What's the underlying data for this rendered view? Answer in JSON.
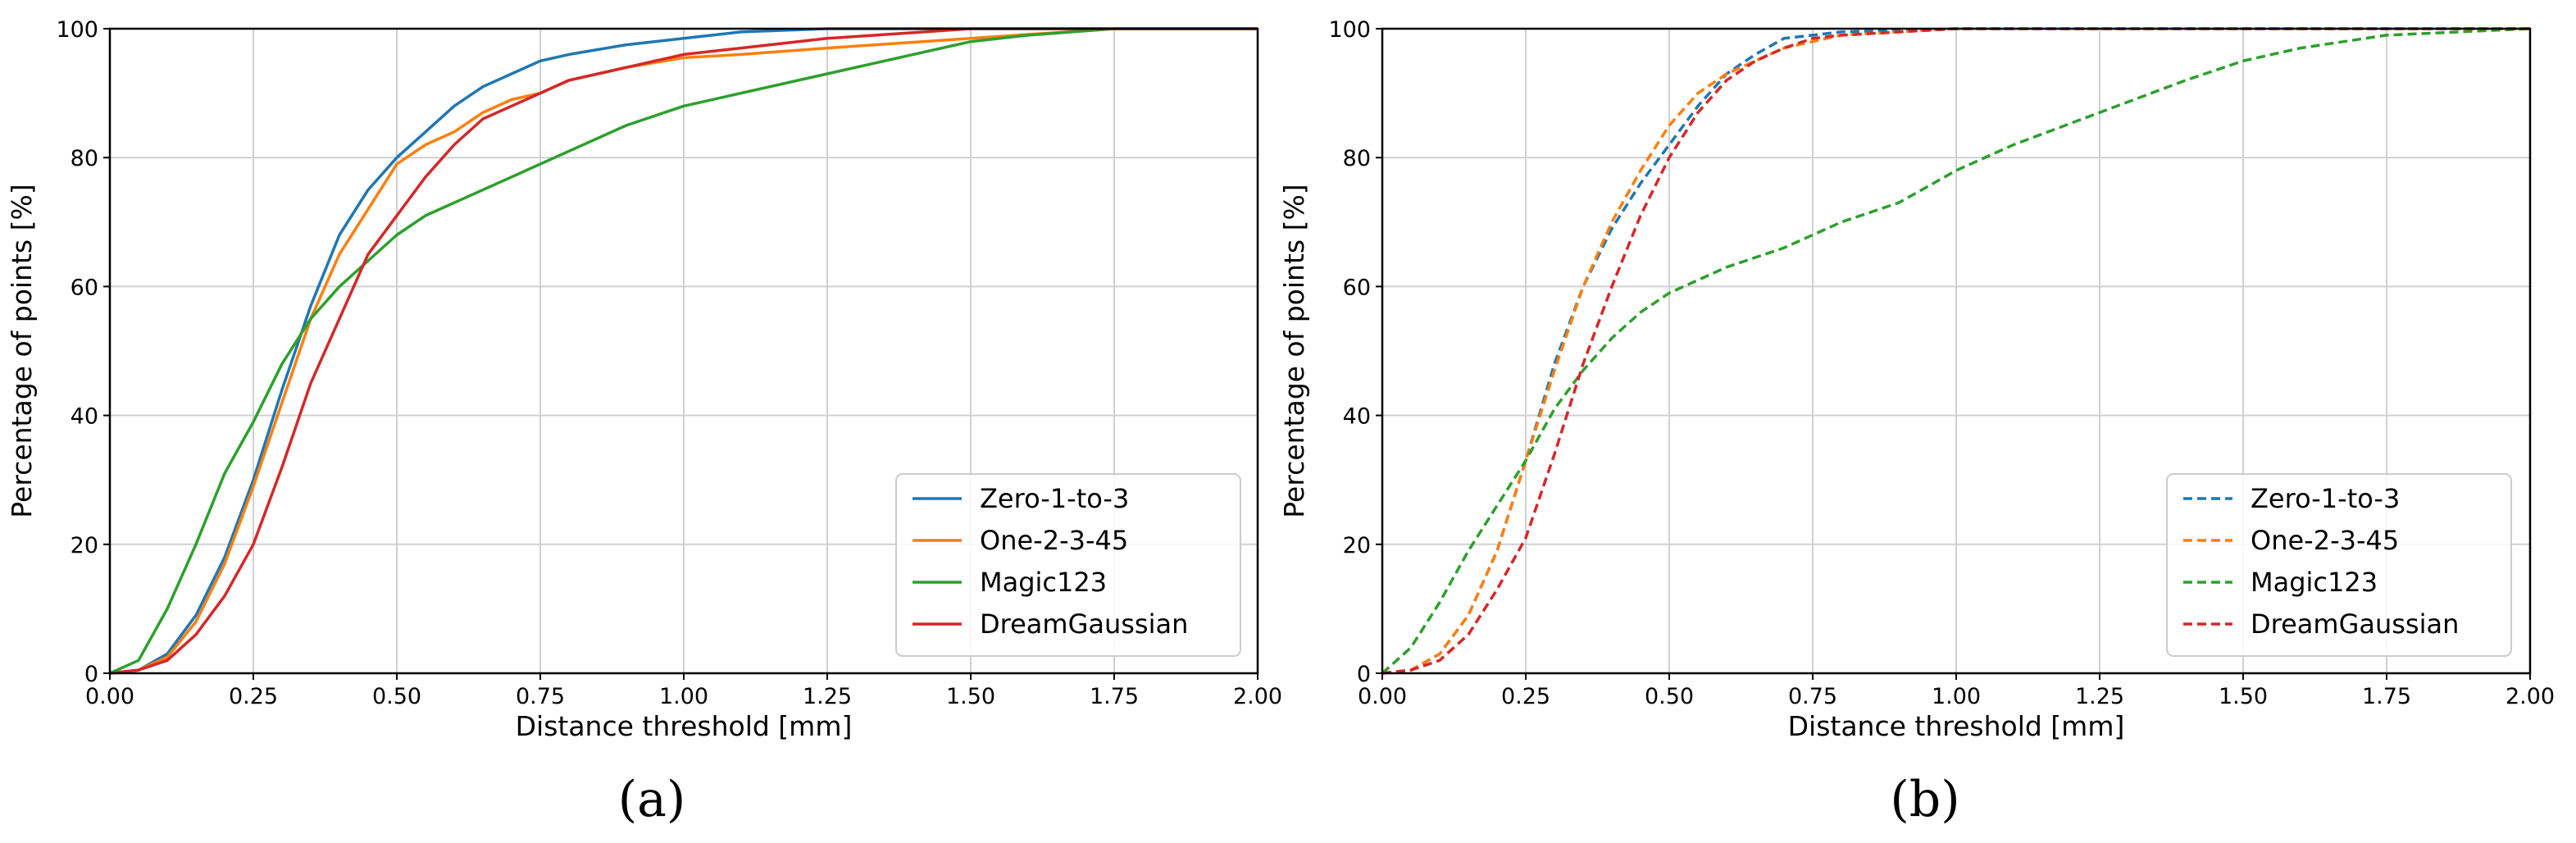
{
  "chart_data": [
    {
      "type": "line",
      "panel_label": "(a)",
      "xlabel": "Distance threshold [mm]",
      "ylabel": "Percentage of points [%]",
      "xlim": [
        0,
        2
      ],
      "ylim": [
        0,
        100
      ],
      "xticks": [
        "0.00",
        "0.25",
        "0.50",
        "0.75",
        "1.00",
        "1.25",
        "1.50",
        "1.75",
        "2.00"
      ],
      "yticks": [
        "0",
        "20",
        "40",
        "60",
        "80",
        "100"
      ],
      "grid": true,
      "legend_position": "lower-right",
      "line_style": "solid",
      "series": [
        {
          "name": "Zero-1-to-3",
          "color": "#1f77b4",
          "x": [
            0,
            0.05,
            0.1,
            0.15,
            0.2,
            0.25,
            0.3,
            0.35,
            0.4,
            0.45,
            0.5,
            0.55,
            0.6,
            0.65,
            0.7,
            0.75,
            0.8,
            0.9,
            1.0,
            1.1,
            1.25,
            1.5,
            2.0
          ],
          "y": [
            0,
            0.5,
            3,
            9,
            18,
            30,
            44,
            57,
            68,
            75,
            80,
            84,
            88,
            91,
            93,
            95,
            96,
            97.5,
            98.5,
            99.5,
            100,
            100,
            100
          ]
        },
        {
          "name": "One-2-3-45",
          "color": "#ff7f0e",
          "x": [
            0,
            0.05,
            0.1,
            0.15,
            0.2,
            0.25,
            0.3,
            0.35,
            0.4,
            0.45,
            0.5,
            0.55,
            0.6,
            0.65,
            0.7,
            0.75,
            0.8,
            0.9,
            1.0,
            1.1,
            1.25,
            1.5,
            1.75,
            2.0
          ],
          "y": [
            0,
            0.5,
            2.5,
            8,
            17,
            29,
            42,
            55,
            65,
            72,
            79,
            82,
            84,
            87,
            89,
            90,
            92,
            94,
            95.5,
            96,
            97,
            98.5,
            100,
            100
          ]
        },
        {
          "name": "Magic123",
          "color": "#2ca02c",
          "x": [
            0,
            0.05,
            0.1,
            0.15,
            0.2,
            0.25,
            0.3,
            0.35,
            0.4,
            0.45,
            0.5,
            0.55,
            0.6,
            0.7,
            0.8,
            0.9,
            1.0,
            1.1,
            1.25,
            1.4,
            1.5,
            1.6,
            1.75,
            2.0
          ],
          "y": [
            0,
            2,
            10,
            20,
            31,
            39,
            48,
            55,
            60,
            64,
            68,
            71,
            73,
            77,
            81,
            85,
            88,
            90,
            93,
            96,
            98,
            99,
            100,
            100
          ]
        },
        {
          "name": "DreamGaussian",
          "color": "#d62728",
          "x": [
            0,
            0.05,
            0.1,
            0.15,
            0.2,
            0.25,
            0.3,
            0.35,
            0.4,
            0.45,
            0.5,
            0.55,
            0.6,
            0.65,
            0.7,
            0.75,
            0.8,
            0.9,
            1.0,
            1.1,
            1.25,
            1.5,
            2.0
          ],
          "y": [
            0,
            0.5,
            2,
            6,
            12,
            20,
            32,
            45,
            55,
            65,
            71,
            77,
            82,
            86,
            88,
            90,
            92,
            94,
            96,
            97,
            98.5,
            100,
            100
          ]
        }
      ]
    },
    {
      "type": "line",
      "panel_label": "(b)",
      "xlabel": "Distance threshold [mm]",
      "ylabel": "Percentage of points [%]",
      "xlim": [
        0,
        2
      ],
      "ylim": [
        0,
        100
      ],
      "xticks": [
        "0.00",
        "0.25",
        "0.50",
        "0.75",
        "1.00",
        "1.25",
        "1.50",
        "1.75",
        "2.00"
      ],
      "yticks": [
        "0",
        "20",
        "40",
        "60",
        "80",
        "100"
      ],
      "grid": true,
      "legend_position": "lower-right",
      "line_style": "dashed",
      "series": [
        {
          "name": "Zero-1-to-3",
          "color": "#1f77b4",
          "x": [
            0,
            0.05,
            0.1,
            0.15,
            0.2,
            0.25,
            0.3,
            0.35,
            0.4,
            0.45,
            0.5,
            0.55,
            0.6,
            0.65,
            0.7,
            0.75,
            0.8,
            1.0,
            2.0
          ],
          "y": [
            0,
            0.5,
            3,
            9,
            19,
            33,
            48,
            60,
            69,
            76,
            82,
            88,
            93,
            96,
            98.5,
            99,
            99.5,
            100,
            100
          ]
        },
        {
          "name": "One-2-3-45",
          "color": "#ff7f0e",
          "x": [
            0,
            0.05,
            0.1,
            0.15,
            0.2,
            0.25,
            0.3,
            0.35,
            0.4,
            0.45,
            0.5,
            0.55,
            0.6,
            0.65,
            0.7,
            0.75,
            0.8,
            1.0,
            2.0
          ],
          "y": [
            0,
            0.5,
            3,
            9,
            19,
            33,
            47,
            60,
            70,
            78,
            85,
            90,
            93,
            95,
            97,
            98,
            99,
            100,
            100
          ]
        },
        {
          "name": "Magic123",
          "color": "#2ca02c",
          "x": [
            0,
            0.05,
            0.1,
            0.15,
            0.2,
            0.25,
            0.3,
            0.35,
            0.4,
            0.45,
            0.5,
            0.6,
            0.7,
            0.8,
            0.9,
            1.0,
            1.1,
            1.25,
            1.4,
            1.5,
            1.6,
            1.75,
            2.0
          ],
          "y": [
            0,
            4,
            11,
            19,
            26,
            33,
            41,
            47,
            52,
            56,
            59,
            63,
            66,
            70,
            73,
            78,
            82,
            87,
            92,
            95,
            97,
            99,
            100
          ]
        },
        {
          "name": "DreamGaussian",
          "color": "#d62728",
          "x": [
            0,
            0.05,
            0.1,
            0.15,
            0.2,
            0.25,
            0.3,
            0.35,
            0.4,
            0.45,
            0.5,
            0.55,
            0.6,
            0.65,
            0.7,
            0.75,
            0.8,
            1.0,
            2.0
          ],
          "y": [
            0,
            0.5,
            2,
            6,
            13,
            21,
            34,
            48,
            60,
            71,
            80,
            87,
            92,
            95,
            97,
            98.5,
            99,
            100,
            100
          ]
        }
      ]
    }
  ]
}
